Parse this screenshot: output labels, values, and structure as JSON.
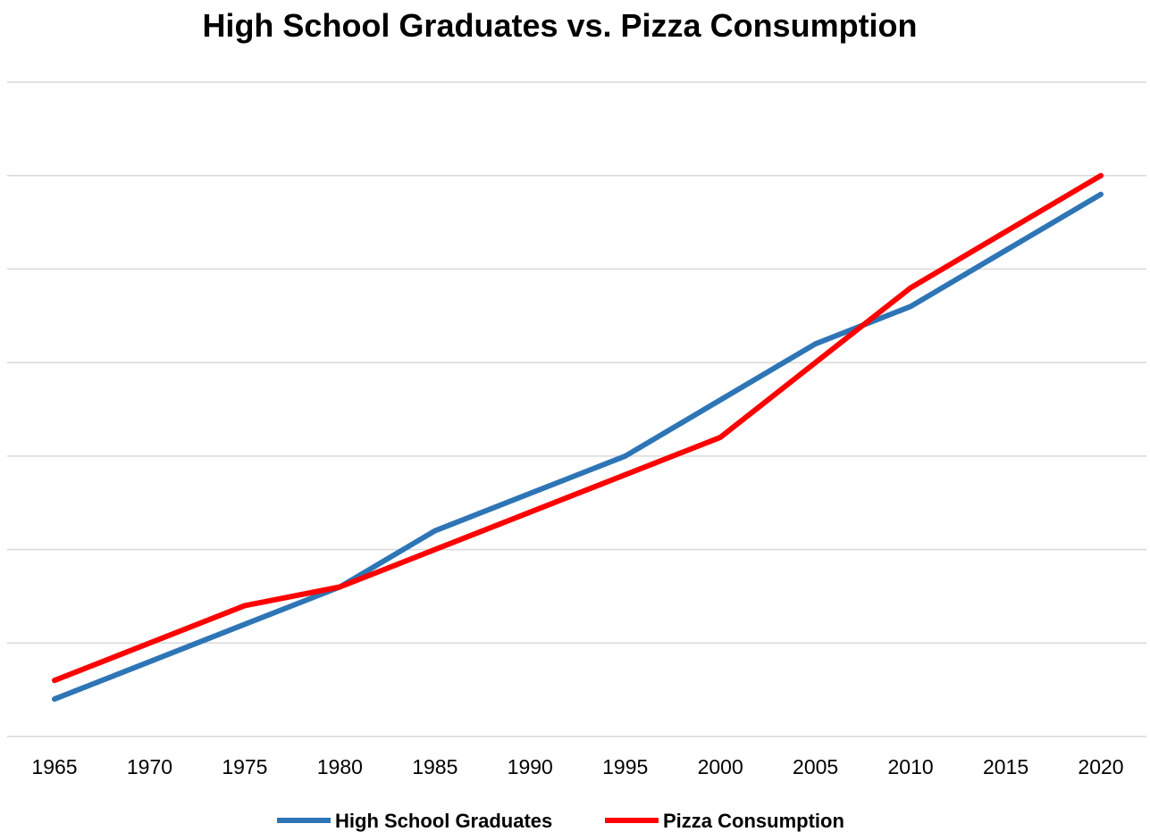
{
  "chart_data": {
    "type": "line",
    "title": "High School Graduates vs. Pizza Consumption",
    "xlabel": "",
    "ylabel": "",
    "x": [
      "1965",
      "1970",
      "1975",
      "1980",
      "1985",
      "1990",
      "1995",
      "2000",
      "2005",
      "2010",
      "2015",
      "2020"
    ],
    "ylim": [
      0,
      7
    ],
    "grid": true,
    "legend": "bottom",
    "series": [
      {
        "name": "High School Graduates",
        "color": "#2E75B6",
        "values": [
          0.4,
          0.8,
          1.2,
          1.6,
          2.2,
          2.6,
          3.0,
          3.6,
          4.2,
          4.6,
          5.2,
          5.8
        ]
      },
      {
        "name": "Pizza Consumption",
        "color": "#FF0000",
        "values": [
          0.6,
          1.0,
          1.4,
          1.6,
          2.0,
          2.4,
          2.8,
          3.2,
          4.0,
          4.8,
          5.4,
          6.0
        ]
      }
    ]
  },
  "style": {
    "gridline_color": "#D9D9D9"
  }
}
